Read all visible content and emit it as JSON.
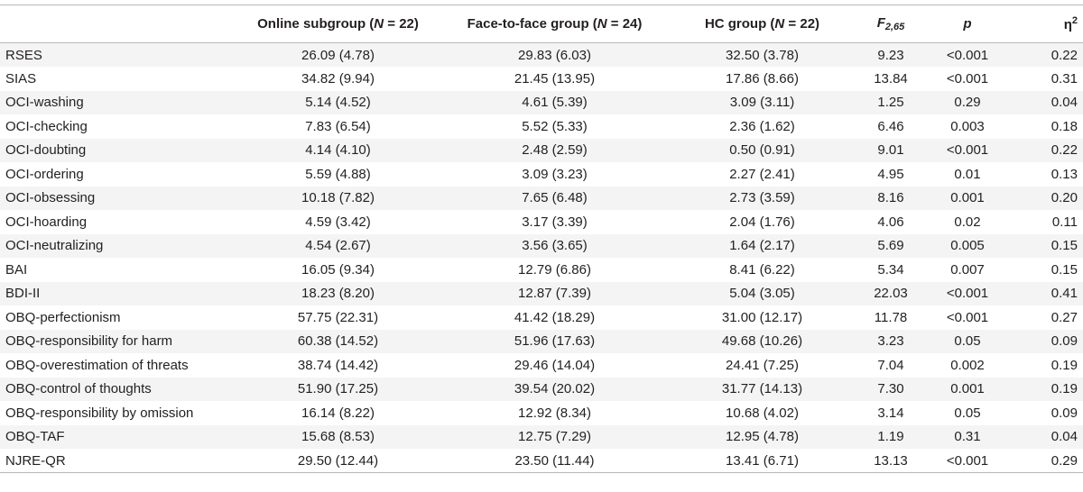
{
  "table": {
    "headers": {
      "online": {
        "pre": "Online subgroup (",
        "n": "N",
        "post": " = 22)"
      },
      "f2f": {
        "pre": "Face-to-face group (",
        "n": "N",
        "post": " = 24)"
      },
      "hc": {
        "pre": "HC group (",
        "n": "N",
        "post": " = 22)"
      },
      "f": {
        "base": "F",
        "sub": "2,65"
      },
      "p": "p",
      "eta": {
        "base": "η",
        "sup": "2"
      }
    },
    "rows": [
      {
        "label": "RSES",
        "online": "26.09 (4.78)",
        "f2f": "29.83 (6.03)",
        "hc": "32.50 (3.78)",
        "f": "9.23",
        "p": "<0.001",
        "eta": "0.22"
      },
      {
        "label": "SIAS",
        "online": "34.82 (9.94)",
        "f2f": "21.45 (13.95)",
        "hc": "17.86 (8.66)",
        "f": "13.84",
        "p": "<0.001",
        "eta": "0.31"
      },
      {
        "label": "OCI-washing",
        "online": "5.14 (4.52)",
        "f2f": "4.61 (5.39)",
        "hc": "3.09 (3.11)",
        "f": "1.25",
        "p": "0.29",
        "eta": "0.04"
      },
      {
        "label": "OCI-checking",
        "online": "7.83 (6.54)",
        "f2f": "5.52 (5.33)",
        "hc": "2.36 (1.62)",
        "f": "6.46",
        "p": "0.003",
        "eta": "0.18"
      },
      {
        "label": "OCI-doubting",
        "online": "4.14 (4.10)",
        "f2f": "2.48 (2.59)",
        "hc": "0.50 (0.91)",
        "f": "9.01",
        "p": "<0.001",
        "eta": "0.22"
      },
      {
        "label": "OCI-ordering",
        "online": "5.59 (4.88)",
        "f2f": "3.09 (3.23)",
        "hc": "2.27 (2.41)",
        "f": "4.95",
        "p": "0.01",
        "eta": "0.13"
      },
      {
        "label": "OCI-obsessing",
        "online": "10.18 (7.82)",
        "f2f": "7.65 (6.48)",
        "hc": "2.73 (3.59)",
        "f": "8.16",
        "p": "0.001",
        "eta": "0.20"
      },
      {
        "label": "OCI-hoarding",
        "online": "4.59 (3.42)",
        "f2f": "3.17 (3.39)",
        "hc": "2.04 (1.76)",
        "f": "4.06",
        "p": "0.02",
        "eta": "0.11"
      },
      {
        "label": "OCI-neutralizing",
        "online": "4.54 (2.67)",
        "f2f": "3.56 (3.65)",
        "hc": "1.64 (2.17)",
        "f": "5.69",
        "p": "0.005",
        "eta": "0.15"
      },
      {
        "label": "BAI",
        "online": "16.05 (9.34)",
        "f2f": "12.79 (6.86)",
        "hc": "8.41 (6.22)",
        "f": "5.34",
        "p": "0.007",
        "eta": "0.15"
      },
      {
        "label": "BDI-II",
        "online": "18.23 (8.20)",
        "f2f": "12.87 (7.39)",
        "hc": "5.04 (3.05)",
        "f": "22.03",
        "p": "<0.001",
        "eta": "0.41"
      },
      {
        "label": "OBQ-perfectionism",
        "online": "57.75 (22.31)",
        "f2f": "41.42 (18.29)",
        "hc": "31.00 (12.17)",
        "f": "11.78",
        "p": "<0.001",
        "eta": "0.27"
      },
      {
        "label": "OBQ-responsibility for harm",
        "online": "60.38 (14.52)",
        "f2f": "51.96 (17.63)",
        "hc": "49.68 (10.26)",
        "f": "3.23",
        "p": "0.05",
        "eta": "0.09"
      },
      {
        "label": "OBQ-overestimation of threats",
        "online": "38.74 (14.42)",
        "f2f": "29.46 (14.04)",
        "hc": "24.41 (7.25)",
        "f": "7.04",
        "p": "0.002",
        "eta": "0.19"
      },
      {
        "label": "OBQ-control of thoughts",
        "online": "51.90 (17.25)",
        "f2f": "39.54 (20.02)",
        "hc": "31.77 (14.13)",
        "f": "7.30",
        "p": "0.001",
        "eta": "0.19"
      },
      {
        "label": "OBQ-responsibility by omission",
        "online": "16.14 (8.22)",
        "f2f": "12.92 (8.34)",
        "hc": "10.68 (4.02)",
        "f": "3.14",
        "p": "0.05",
        "eta": "0.09"
      },
      {
        "label": "OBQ-TAF",
        "online": "15.68 (8.53)",
        "f2f": "12.75 (7.29)",
        "hc": "12.95 (4.78)",
        "f": "1.19",
        "p": "0.31",
        "eta": "0.04"
      },
      {
        "label": "NJRE-QR",
        "online": "29.50 (12.44)",
        "f2f": "23.50 (11.44)",
        "hc": "13.41 (6.71)",
        "f": "13.13",
        "p": "<0.001",
        "eta": "0.29"
      }
    ]
  }
}
